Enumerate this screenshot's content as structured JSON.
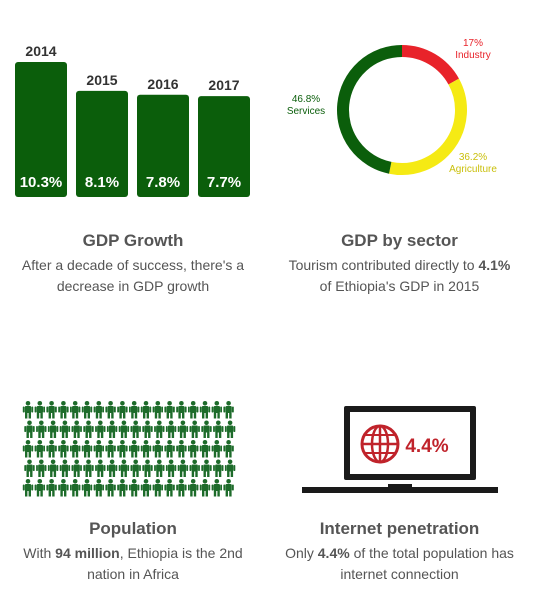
{
  "chart_data": [
    {
      "type": "bar",
      "categories": [
        "2014",
        "2015",
        "2016",
        "2017"
      ],
      "values": [
        10.3,
        8.1,
        7.8,
        7.7
      ],
      "value_labels": [
        "10.3%",
        "8.1%",
        "7.8%",
        "7.7%"
      ],
      "ylim": [
        0,
        10.3
      ],
      "color": "#0b5e0b"
    },
    {
      "type": "pie",
      "style": "donut",
      "slices": [
        {
          "label": "Industry",
          "value": 17,
          "display": "17%",
          "color": "#e8232a"
        },
        {
          "label": "Agriculture",
          "value": 36.2,
          "display": "36.2%",
          "color": "#f5ea14"
        },
        {
          "label": "Services",
          "value": 46.8,
          "display": "46.8%",
          "color": "#0b5e0b"
        }
      ]
    }
  ],
  "sections": {
    "gdp_growth": {
      "title": "GDP Growth",
      "desc_line1": "After a decade of success, there's a",
      "desc_line2": "decrease in GDP growth"
    },
    "gdp_sector": {
      "title": "GDP by sector",
      "desc_pre": "Tourism contributed directly to ",
      "desc_bold": "4.1%",
      "desc_line2": "of Ethiopia's GDP in 2015"
    },
    "population": {
      "title": "Population",
      "desc_pre": "With ",
      "desc_bold": "94 million",
      "desc_post": ", Ethiopia is the 2nd",
      "desc_line2": "nation in Africa",
      "icon": "people-crowd-icon",
      "color": "#1d6b2a"
    },
    "internet": {
      "title": "Internet penetration",
      "desc_pre": "Only ",
      "desc_bold": "4.4%",
      "desc_post": " of the total population has",
      "desc_line2": "internet connection",
      "screen_value": "4.4%",
      "icon": "globe-icon",
      "accent": "#c0232b"
    }
  }
}
